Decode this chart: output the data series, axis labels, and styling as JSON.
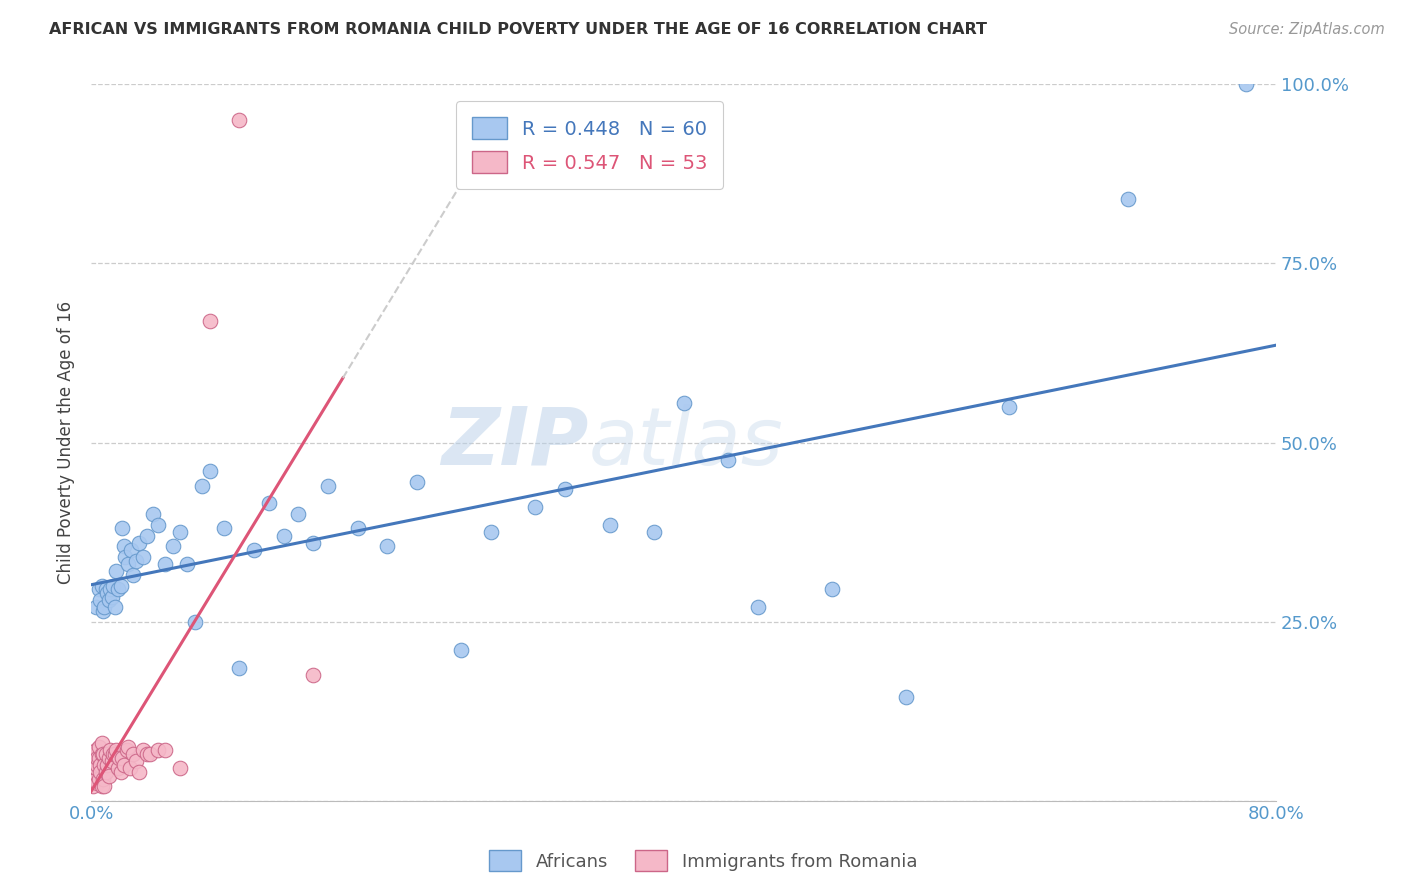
{
  "title": "AFRICAN VS IMMIGRANTS FROM ROMANIA CHILD POVERTY UNDER THE AGE OF 16 CORRELATION CHART",
  "source": "Source: ZipAtlas.com",
  "ylabel": "Child Poverty Under the Age of 16",
  "xlim": [
    0,
    0.8
  ],
  "ylim": [
    0,
    1.0
  ],
  "x_tick_positions": [
    0.0,
    0.1,
    0.2,
    0.3,
    0.4,
    0.5,
    0.6,
    0.7,
    0.8
  ],
  "x_tick_labels": [
    "0.0%",
    "",
    "",
    "",
    "",
    "",
    "",
    "",
    "80.0%"
  ],
  "y_tick_positions": [
    0.0,
    0.25,
    0.5,
    0.75,
    1.0
  ],
  "y_tick_labels": [
    "",
    "25.0%",
    "50.0%",
    "75.0%",
    "100.0%"
  ],
  "africans_color": "#a8c8f0",
  "africans_edge": "#6699cc",
  "romania_color": "#f5b8c8",
  "romania_edge": "#cc6688",
  "africans_line_color": "#4477bb",
  "romania_line_color": "#dd5577",
  "africans_R": 0.448,
  "africans_N": 60,
  "romania_R": 0.547,
  "romania_N": 53,
  "africans_x": [
    0.003,
    0.005,
    0.006,
    0.007,
    0.008,
    0.009,
    0.01,
    0.011,
    0.012,
    0.013,
    0.014,
    0.015,
    0.016,
    0.017,
    0.018,
    0.02,
    0.021,
    0.022,
    0.023,
    0.025,
    0.027,
    0.028,
    0.03,
    0.032,
    0.035,
    0.038,
    0.042,
    0.045,
    0.05,
    0.055,
    0.06,
    0.065,
    0.07,
    0.075,
    0.08,
    0.09,
    0.1,
    0.11,
    0.12,
    0.13,
    0.14,
    0.15,
    0.16,
    0.18,
    0.2,
    0.22,
    0.25,
    0.27,
    0.3,
    0.32,
    0.35,
    0.38,
    0.4,
    0.43,
    0.45,
    0.5,
    0.55,
    0.62,
    0.7,
    0.78
  ],
  "africans_y": [
    0.27,
    0.295,
    0.28,
    0.3,
    0.265,
    0.27,
    0.295,
    0.29,
    0.28,
    0.295,
    0.285,
    0.3,
    0.27,
    0.32,
    0.295,
    0.3,
    0.38,
    0.355,
    0.34,
    0.33,
    0.35,
    0.315,
    0.335,
    0.36,
    0.34,
    0.37,
    0.4,
    0.385,
    0.33,
    0.355,
    0.375,
    0.33,
    0.25,
    0.44,
    0.46,
    0.38,
    0.185,
    0.35,
    0.415,
    0.37,
    0.4,
    0.36,
    0.44,
    0.38,
    0.355,
    0.445,
    0.21,
    0.375,
    0.41,
    0.435,
    0.385,
    0.375,
    0.555,
    0.475,
    0.27,
    0.295,
    0.145,
    0.55,
    0.84,
    1.0
  ],
  "romania_x": [
    0.001,
    0.001,
    0.002,
    0.002,
    0.002,
    0.003,
    0.003,
    0.003,
    0.004,
    0.004,
    0.004,
    0.005,
    0.005,
    0.005,
    0.006,
    0.006,
    0.007,
    0.007,
    0.007,
    0.008,
    0.008,
    0.009,
    0.009,
    0.01,
    0.01,
    0.011,
    0.012,
    0.012,
    0.013,
    0.014,
    0.015,
    0.016,
    0.017,
    0.018,
    0.019,
    0.02,
    0.021,
    0.022,
    0.024,
    0.025,
    0.026,
    0.028,
    0.03,
    0.032,
    0.035,
    0.038,
    0.04,
    0.045,
    0.05,
    0.06,
    0.08,
    0.1,
    0.15
  ],
  "romania_y": [
    0.02,
    0.055,
    0.04,
    0.065,
    0.035,
    0.03,
    0.07,
    0.045,
    0.05,
    0.025,
    0.06,
    0.03,
    0.06,
    0.075,
    0.05,
    0.04,
    0.065,
    0.02,
    0.08,
    0.03,
    0.065,
    0.05,
    0.02,
    0.065,
    0.04,
    0.05,
    0.06,
    0.035,
    0.07,
    0.055,
    0.065,
    0.065,
    0.07,
    0.045,
    0.06,
    0.04,
    0.06,
    0.05,
    0.07,
    0.075,
    0.045,
    0.065,
    0.055,
    0.04,
    0.07,
    0.065,
    0.065,
    0.07,
    0.07,
    0.045,
    0.67,
    0.95,
    0.175
  ],
  "watermark_zip": "ZIP",
  "watermark_atlas": "atlas",
  "background_color": "#ffffff",
  "grid_color": "#cccccc",
  "tick_color": "#5599cc",
  "title_color": "#333333",
  "ylabel_color": "#444444"
}
